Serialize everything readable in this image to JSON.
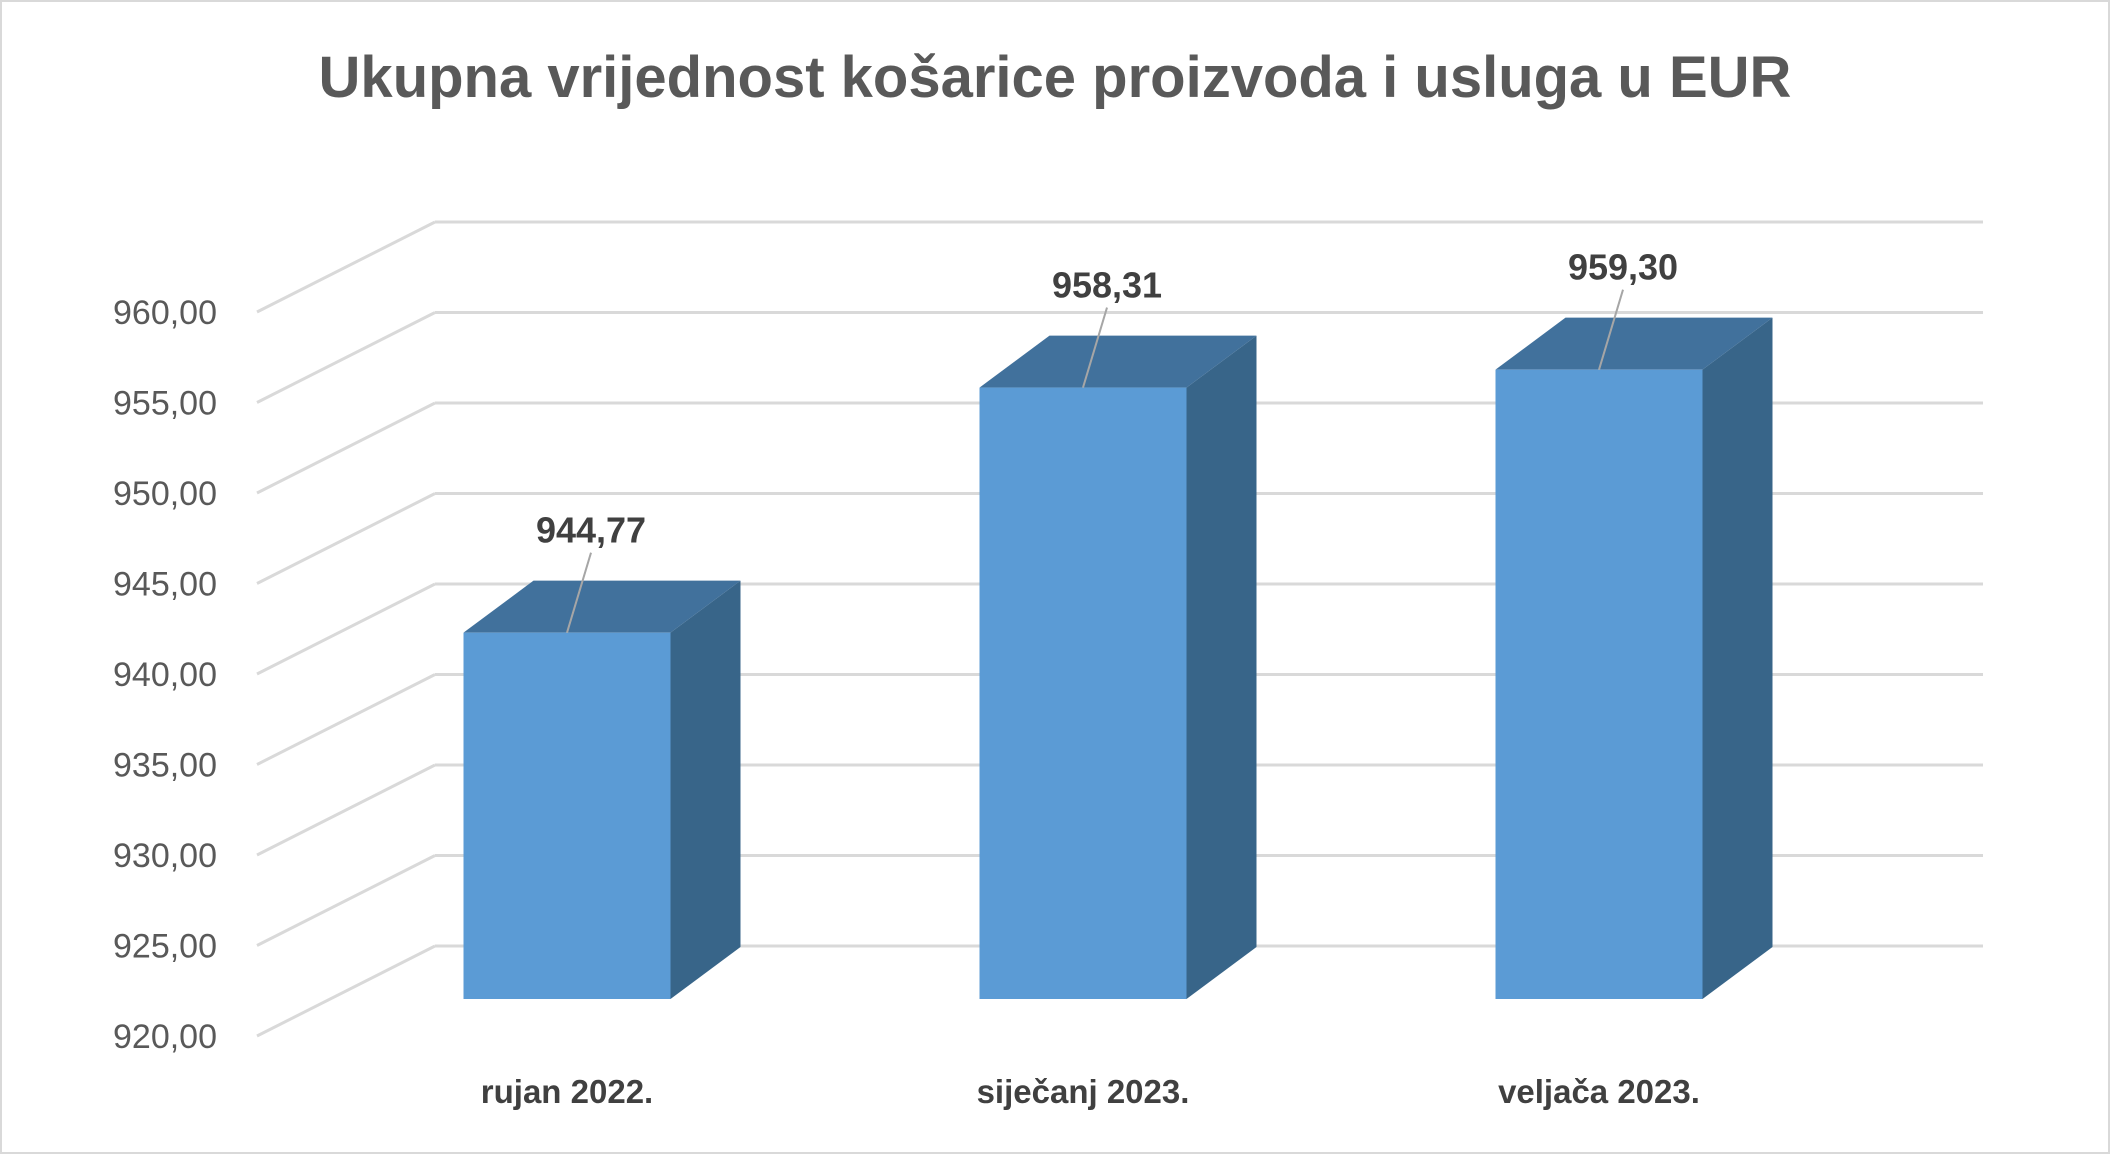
{
  "chart_data": {
    "type": "bar",
    "style": "3d-column",
    "title": "Ukupna vrijednost košarice proizvoda i usluga u EUR",
    "categories": [
      "rujan 2022.",
      "siječanj 2023.",
      "veljača 2023."
    ],
    "values": [
      944.77,
      958.31,
      959.3
    ],
    "data_labels": [
      "944,77",
      "958,31",
      "959,30"
    ],
    "yticks": [
      "920,00",
      "925,00",
      "930,00",
      "935,00",
      "940,00",
      "945,00",
      "950,00",
      "955,00",
      "960,00"
    ],
    "ylim": [
      920,
      960
    ],
    "ystep": 5,
    "xlabel": "",
    "ylabel": "",
    "grid": true,
    "legend": "none",
    "colors": {
      "bar_front": "#5b9bd5",
      "bar_top": "#41719c",
      "bar_side": "#386589",
      "grid": "#d9d9d9",
      "text": "#595959"
    }
  }
}
